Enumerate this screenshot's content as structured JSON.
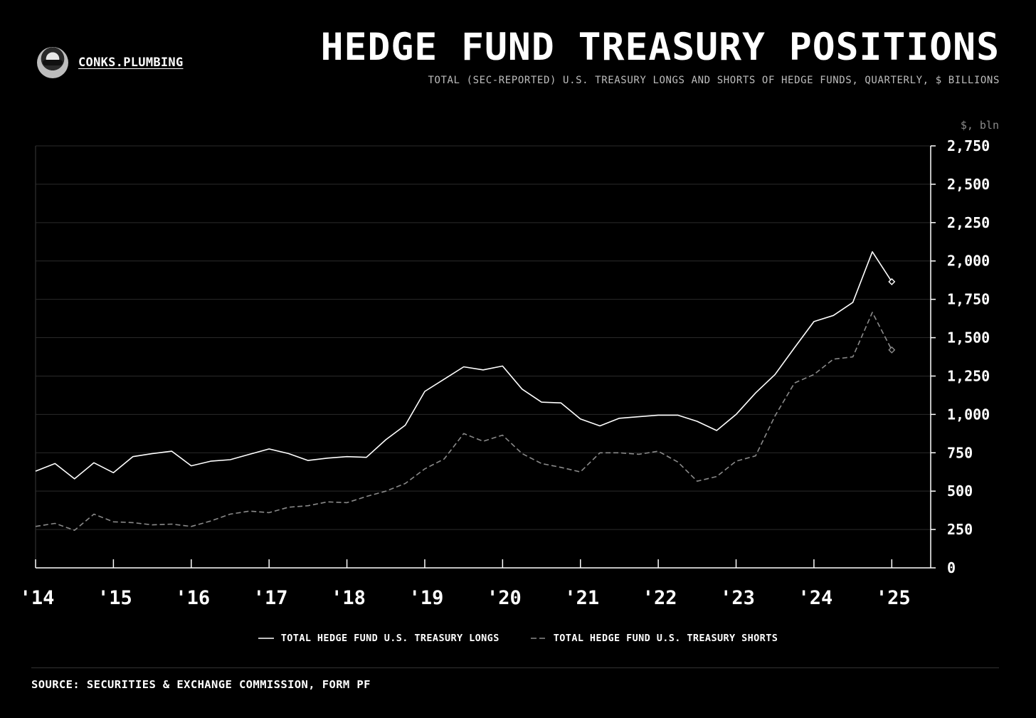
{
  "brand": {
    "name": "CONKS.PLUMBING",
    "logo_icon": "ninja-avatar-icon"
  },
  "header": {
    "title": "HEDGE FUND TREASURY POSITIONS",
    "subtitle": "TOTAL (SEC-REPORTED) U.S. TREASURY LONGS AND SHORTS OF HEDGE FUNDS, QUARTERLY, $ BILLIONS"
  },
  "footer": {
    "source": "SOURCE: SECURITIES & EXCHANGE COMMISSION, FORM PF"
  },
  "colors": {
    "background": "#000000",
    "longs": "#ffffff",
    "shorts": "#8a8a8a",
    "grid": "#2a2a2a",
    "axis": "#ffffff"
  },
  "chart_data": {
    "type": "line",
    "unit_label": "$, bln",
    "ylim": [
      0,
      2750
    ],
    "yticks": [
      0,
      250,
      500,
      750,
      1000,
      1250,
      1500,
      1750,
      2000,
      2250,
      2500,
      2750
    ],
    "ytick_labels": [
      "0",
      "250",
      "500",
      "750",
      "1,000",
      "1,250",
      "1,500",
      "1,750",
      "2,000",
      "2,250",
      "2,500",
      "2,750"
    ],
    "xlim": [
      2014.0,
      2025.5
    ],
    "xticks": [
      2014,
      2015,
      2016,
      2017,
      2018,
      2019,
      2020,
      2021,
      2022,
      2023,
      2024,
      2025
    ],
    "xtick_labels": [
      "'14",
      "'15",
      "'16",
      "'17",
      "'18",
      "'19",
      "'20",
      "'21",
      "'22",
      "'23",
      "'24",
      "'25"
    ],
    "x_quarter_start": 2014.0,
    "x_step": 0.25,
    "grid": "horizontal",
    "legend_position": "bottom",
    "series": [
      {
        "name": "TOTAL HEDGE FUND U.S. TREASURY LONGS",
        "style": "solid",
        "values": [
          630,
          680,
          580,
          685,
          620,
          725,
          745,
          760,
          665,
          695,
          705,
          740,
          775,
          745,
          700,
          715,
          725,
          720,
          835,
          930,
          1150,
          1230,
          1310,
          1290,
          1315,
          1165,
          1080,
          1075,
          970,
          925,
          975,
          985,
          995,
          995,
          955,
          895,
          1000,
          1140,
          1260,
          1435,
          1605,
          1645,
          1730,
          2060,
          1865
        ],
        "end_marker": "diamond"
      },
      {
        "name": "TOTAL HEDGE FUND U.S. TREASURY SHORTS",
        "style": "dashed",
        "values": [
          270,
          290,
          245,
          350,
          300,
          295,
          280,
          285,
          270,
          305,
          350,
          370,
          360,
          395,
          405,
          430,
          425,
          465,
          500,
          550,
          645,
          710,
          875,
          825,
          865,
          745,
          680,
          655,
          625,
          750,
          750,
          740,
          760,
          690,
          565,
          595,
          695,
          730,
          990,
          1205,
          1260,
          1360,
          1375,
          1665,
          1420
        ],
        "end_marker": "diamond"
      }
    ]
  }
}
